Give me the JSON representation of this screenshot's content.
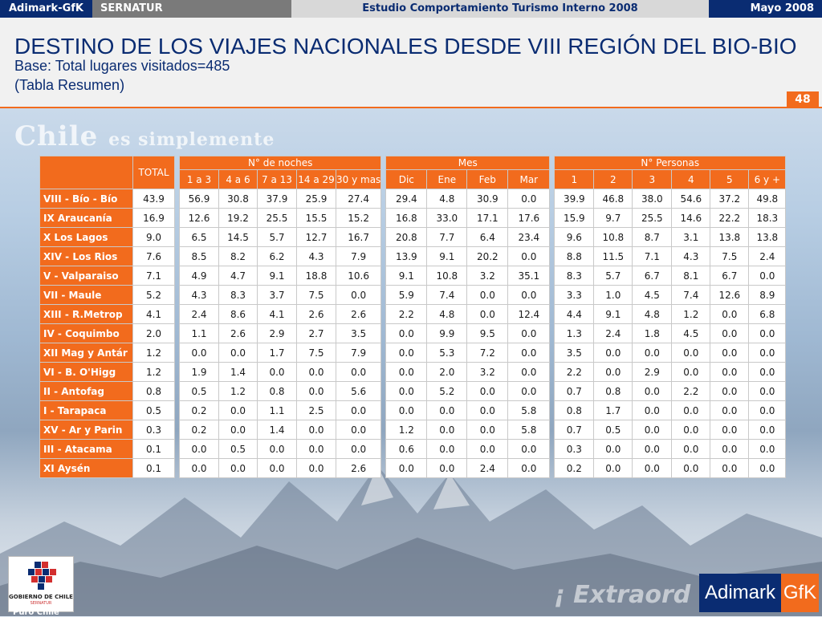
{
  "topbar": {
    "brand": "Adimark-GfK",
    "client": "SERNATUR",
    "study": "Estudio Comportamiento Turismo Interno 2008",
    "date": "Mayo 2008"
  },
  "header": {
    "title": "DESTINO DE LOS VIAJES NACIONALES DESDE VIII REGIÓN DEL BIO-BIO",
    "base": "Base: Total lugares visitados=485",
    "note": "(Tabla Resumen)",
    "page_number": "48"
  },
  "background": {
    "slogan_main": "Chile",
    "slogan_rest": "es simplemente",
    "bottom_slogan": "¡ Extraord",
    "puro": "Puro Chile"
  },
  "table": {
    "total_label": "TOTAL",
    "groups": {
      "noches": "N° de noches",
      "mes": "Mes",
      "personas": "N° Personas"
    },
    "noches_cols": [
      "1 a 3",
      "4 a 6",
      "7 a 13",
      "14 a 29",
      "30 y mas"
    ],
    "mes_cols": [
      "Dic",
      "Ene",
      "Feb",
      "Mar"
    ],
    "personas_cols": [
      "1",
      "2",
      "3",
      "4",
      "5",
      "6 y +"
    ],
    "rows": [
      {
        "label": "VIII - Bío - Bío",
        "total": "43.9",
        "noches": [
          "56.9",
          "30.8",
          "37.9",
          "25.9",
          "27.4"
        ],
        "mes": [
          "29.4",
          "4.8",
          "30.9",
          "0.0"
        ],
        "personas": [
          "39.9",
          "46.8",
          "38.0",
          "54.6",
          "37.2",
          "49.8"
        ]
      },
      {
        "label": "IX Araucanía",
        "total": "16.9",
        "noches": [
          "12.6",
          "19.2",
          "25.5",
          "15.5",
          "15.2"
        ],
        "mes": [
          "16.8",
          "33.0",
          "17.1",
          "17.6"
        ],
        "personas": [
          "15.9",
          "9.7",
          "25.5",
          "14.6",
          "22.2",
          "18.3"
        ]
      },
      {
        "label": "X Los Lagos",
        "total": "9.0",
        "noches": [
          "6.5",
          "14.5",
          "5.7",
          "12.7",
          "16.7"
        ],
        "mes": [
          "20.8",
          "7.7",
          "6.4",
          "23.4"
        ],
        "personas": [
          "9.6",
          "10.8",
          "8.7",
          "3.1",
          "13.8",
          "13.8"
        ]
      },
      {
        "label": "XIV - Los Rios",
        "total": "7.6",
        "noches": [
          "8.5",
          "8.2",
          "6.2",
          "4.3",
          "7.9"
        ],
        "mes": [
          "13.9",
          "9.1",
          "20.2",
          "0.0"
        ],
        "personas": [
          "8.8",
          "11.5",
          "7.1",
          "4.3",
          "7.5",
          "2.4"
        ]
      },
      {
        "label": "V - Valparaiso",
        "total": "7.1",
        "noches": [
          "4.9",
          "4.7",
          "9.1",
          "18.8",
          "10.6"
        ],
        "mes": [
          "9.1",
          "10.8",
          "3.2",
          "35.1"
        ],
        "personas": [
          "8.3",
          "5.7",
          "6.7",
          "8.1",
          "6.7",
          "0.0"
        ]
      },
      {
        "label": "VII - Maule",
        "total": "5.2",
        "noches": [
          "4.3",
          "8.3",
          "3.7",
          "7.5",
          "0.0"
        ],
        "mes": [
          "5.9",
          "7.4",
          "0.0",
          "0.0"
        ],
        "personas": [
          "3.3",
          "1.0",
          "4.5",
          "7.4",
          "12.6",
          "8.9"
        ]
      },
      {
        "label": "XIII - R.Metrop",
        "total": "4.1",
        "noches": [
          "2.4",
          "8.6",
          "4.1",
          "2.6",
          "2.6"
        ],
        "mes": [
          "2.2",
          "4.8",
          "0.0",
          "12.4"
        ],
        "personas": [
          "4.4",
          "9.1",
          "4.8",
          "1.2",
          "0.0",
          "6.8"
        ]
      },
      {
        "label": "IV - Coquimbo",
        "total": "2.0",
        "noches": [
          "1.1",
          "2.6",
          "2.9",
          "2.7",
          "3.5"
        ],
        "mes": [
          "0.0",
          "9.9",
          "9.5",
          "0.0"
        ],
        "personas": [
          "1.3",
          "2.4",
          "1.8",
          "4.5",
          "0.0",
          "0.0"
        ]
      },
      {
        "label": "XII Mag y Antár",
        "total": "1.2",
        "noches": [
          "0.0",
          "0.0",
          "1.7",
          "7.5",
          "7.9"
        ],
        "mes": [
          "0.0",
          "5.3",
          "7.2",
          "0.0"
        ],
        "personas": [
          "3.5",
          "0.0",
          "0.0",
          "0.0",
          "0.0",
          "0.0"
        ]
      },
      {
        "label": "VI - B. O'Higg",
        "total": "1.2",
        "noches": [
          "1.9",
          "1.4",
          "0.0",
          "0.0",
          "0.0"
        ],
        "mes": [
          "0.0",
          "2.0",
          "3.2",
          "0.0"
        ],
        "personas": [
          "2.2",
          "0.0",
          "2.9",
          "0.0",
          "0.0",
          "0.0"
        ]
      },
      {
        "label": "II - Antofag",
        "total": "0.8",
        "noches": [
          "0.5",
          "1.2",
          "0.8",
          "0.0",
          "5.6"
        ],
        "mes": [
          "0.0",
          "5.2",
          "0.0",
          "0.0"
        ],
        "personas": [
          "0.7",
          "0.8",
          "0.0",
          "2.2",
          "0.0",
          "0.0"
        ]
      },
      {
        "label": "I - Tarapaca",
        "total": "0.5",
        "noches": [
          "0.2",
          "0.0",
          "1.1",
          "2.5",
          "0.0"
        ],
        "mes": [
          "0.0",
          "0.0",
          "0.0",
          "5.8"
        ],
        "personas": [
          "0.8",
          "1.7",
          "0.0",
          "0.0",
          "0.0",
          "0.0"
        ]
      },
      {
        "label": "XV - Ar y Parin",
        "total": "0.3",
        "noches": [
          "0.2",
          "0.0",
          "1.4",
          "0.0",
          "0.0"
        ],
        "mes": [
          "1.2",
          "0.0",
          "0.0",
          "5.8"
        ],
        "personas": [
          "0.7",
          "0.5",
          "0.0",
          "0.0",
          "0.0",
          "0.0"
        ]
      },
      {
        "label": "III - Atacama",
        "total": "0.1",
        "noches": [
          "0.0",
          "0.5",
          "0.0",
          "0.0",
          "0.0"
        ],
        "mes": [
          "0.6",
          "0.0",
          "0.0",
          "0.0"
        ],
        "personas": [
          "0.3",
          "0.0",
          "0.0",
          "0.0",
          "0.0",
          "0.0"
        ]
      },
      {
        "label": "XI Aysén",
        "total": "0.1",
        "noches": [
          "0.0",
          "0.0",
          "0.0",
          "0.0",
          "2.6"
        ],
        "mes": [
          "0.0",
          "0.0",
          "2.4",
          "0.0"
        ],
        "personas": [
          "0.2",
          "0.0",
          "0.0",
          "0.0",
          "0.0",
          "0.0"
        ]
      }
    ]
  },
  "logos": {
    "gobierno": "GOBIERNO DE CHILE",
    "sernatur": "SERNATUR",
    "adimark": "Adimark",
    "gfk": "GfK"
  },
  "colors": {
    "navy": "#0a2c72",
    "orange": "#f26b1d"
  }
}
